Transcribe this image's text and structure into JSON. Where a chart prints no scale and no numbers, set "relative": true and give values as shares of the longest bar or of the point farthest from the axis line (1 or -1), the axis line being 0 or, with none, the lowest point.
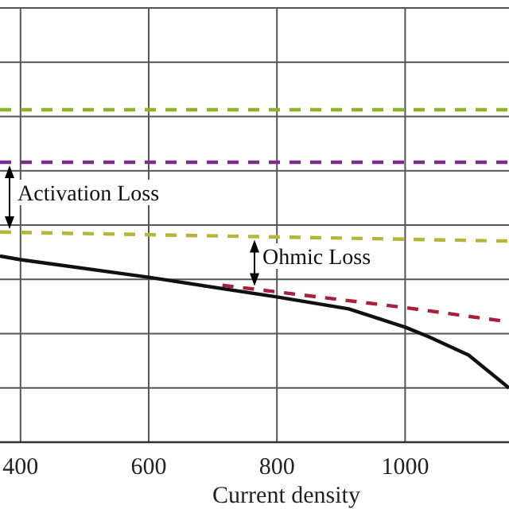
{
  "chart_data": {
    "type": "line",
    "relative": true,
    "xlabel": "Current density",
    "xlim": [
      368,
      1162
    ],
    "xticks": [
      400,
      600,
      800,
      1000
    ],
    "grid": true,
    "line_style": "dashed",
    "marker": "none",
    "series": [
      {
        "color": "#8db32a",
        "x": [
          368,
          1162
        ],
        "values": [
          1,
          1
        ]
      },
      {
        "color": "#7b2d8e",
        "x": [
          368,
          1162
        ],
        "values": [
          0.842,
          0.842
        ]
      },
      {
        "color": "#b5b53a",
        "x": [
          368,
          1162
        ],
        "values": [
          0.632,
          0.605
        ]
      },
      {
        "color": "#a8203a",
        "x": [
          715,
          1000,
          1162
        ],
        "values": [
          0.472,
          0.405,
          0.362
        ]
      },
      {
        "color": "#111111",
        "line_style": "solid",
        "x": [
          368,
          400,
          600,
          800,
          912,
          1000,
          1037,
          1099,
          1162
        ],
        "values": [
          0.56,
          0.549,
          0.496,
          0.437,
          0.401,
          0.346,
          0.317,
          0.262,
          0.163
        ]
      }
    ],
    "annotations": [
      "Activation Loss",
      "Ohmic Loss"
    ]
  }
}
